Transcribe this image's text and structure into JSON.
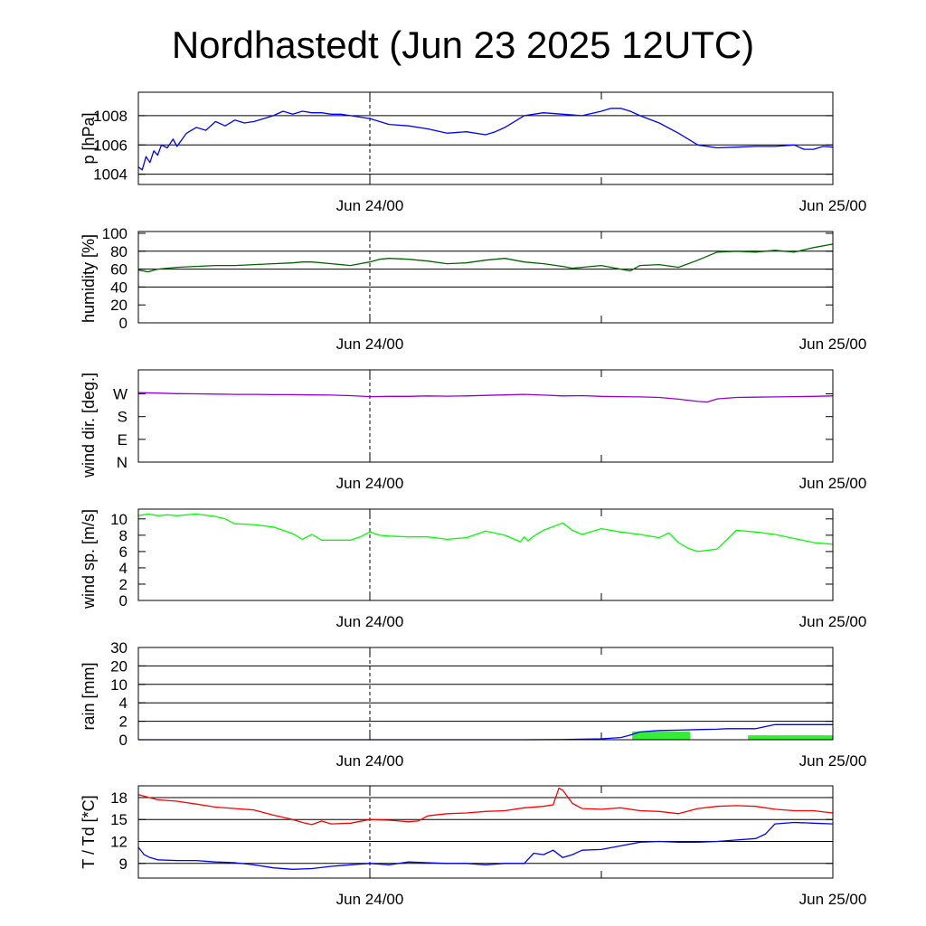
{
  "title": "Nordhastedt (Jun 23 2025 12UTC)",
  "colors": {
    "pressure": "#0000ff",
    "humidity": "#006400",
    "wind_dir": "#9400d3",
    "wind_speed": "#00ff00",
    "rain_total": "#0000ff",
    "rain_bar": "#33ee33",
    "temperature": "#ff0000",
    "dewpoint": "#0000ff"
  },
  "chart_data": [
    {
      "id": "pressure",
      "type": "line",
      "ylabel": "p [hPa]",
      "ylim": [
        1003.3,
        1009.6
      ],
      "yticks": [
        1004,
        1006,
        1008
      ],
      "yticklabels": [
        "1004",
        "1006",
        "1008"
      ],
      "hgrid": [
        1004,
        1006,
        1008
      ],
      "xlim": [
        0,
        36
      ],
      "xticks": [
        12,
        36
      ],
      "xticklabels": [
        "Jun 24/00",
        "Jun 25/00"
      ],
      "minor_xticks": [
        24
      ],
      "vline": 12,
      "series": [
        {
          "color_key": "pressure",
          "x": [
            0,
            0.2,
            0.4,
            0.6,
            0.8,
            1.0,
            1.2,
            1.5,
            1.8,
            2.0,
            2.5,
            3.0,
            3.5,
            4.0,
            4.5,
            5.0,
            5.5,
            6.0,
            6.5,
            7.0,
            7.5,
            8.0,
            8.5,
            9.0,
            9.5,
            10.0,
            10.5,
            11.0,
            11.5,
            12.0,
            12.5,
            13.0,
            14.0,
            15.0,
            16.0,
            17.0,
            18.0,
            18.5,
            19.0,
            19.5,
            20.0,
            21.0,
            22.0,
            23.0,
            24.0,
            24.5,
            25.0,
            25.5,
            26.0,
            27.0,
            28.0,
            29.0,
            30.0,
            31.0,
            32.0,
            33.0,
            34.0,
            34.5,
            35.0,
            35.5,
            36.0
          ],
          "y": [
            1004.5,
            1004.3,
            1005.2,
            1004.8,
            1005.6,
            1005.3,
            1006.0,
            1005.8,
            1006.4,
            1005.9,
            1006.8,
            1007.2,
            1007.0,
            1007.6,
            1007.3,
            1007.7,
            1007.5,
            1007.6,
            1007.8,
            1008.0,
            1008.3,
            1008.1,
            1008.3,
            1008.2,
            1008.2,
            1008.1,
            1008.1,
            1008.0,
            1007.9,
            1007.8,
            1007.6,
            1007.4,
            1007.3,
            1007.1,
            1006.8,
            1006.9,
            1006.7,
            1006.9,
            1007.2,
            1007.6,
            1008.0,
            1008.2,
            1008.1,
            1008.0,
            1008.3,
            1008.5,
            1008.5,
            1008.3,
            1008.0,
            1007.5,
            1006.8,
            1006.0,
            1005.8,
            1005.85,
            1005.9,
            1005.9,
            1006.0,
            1005.7,
            1005.7,
            1005.9,
            1005.85
          ]
        }
      ]
    },
    {
      "id": "humidity",
      "type": "line",
      "ylabel": "humidity [%]",
      "ylim": [
        0,
        102
      ],
      "yticks": [
        0,
        20,
        40,
        60,
        80,
        100
      ],
      "yticklabels": [
        "0",
        "20",
        "40",
        "60",
        "80",
        "100"
      ],
      "hgrid": [
        40,
        60,
        80
      ],
      "xlim": [
        0,
        36
      ],
      "xticks": [
        12,
        36
      ],
      "xticklabels": [
        "Jun 24/00",
        "Jun 25/00"
      ],
      "minor_xticks": [
        24
      ],
      "vline": 12,
      "series": [
        {
          "color_key": "humidity",
          "x": [
            0,
            0.5,
            1,
            2,
            3,
            4,
            5,
            6,
            7,
            8,
            8.5,
            9,
            10,
            11,
            11.5,
            12,
            12.5,
            13,
            14,
            15,
            16,
            17,
            18,
            19,
            20,
            21,
            22,
            22.5,
            23,
            23.5,
            24,
            25,
            25.5,
            26,
            27,
            28,
            29,
            30,
            31,
            32,
            33,
            34,
            35,
            36
          ],
          "y": [
            59,
            57,
            60,
            62,
            63,
            64,
            64,
            65,
            66,
            67,
            68,
            68,
            66,
            64,
            66,
            68,
            71,
            72,
            71,
            69,
            66,
            67,
            70,
            72,
            68,
            66,
            63,
            61,
            62,
            63,
            64,
            60,
            58,
            64,
            65,
            62,
            70,
            79,
            80,
            79,
            81,
            79,
            84,
            88
          ]
        }
      ]
    },
    {
      "id": "wind_direction",
      "type": "line",
      "ylabel": "wind dir. [deg.]",
      "ylim": [
        0,
        365
      ],
      "yticks": [
        0,
        90,
        180,
        270
      ],
      "yticklabels": [
        "N",
        "E",
        "S",
        "W"
      ],
      "hgrid": [],
      "xlim": [
        0,
        36
      ],
      "xticks": [
        12,
        36
      ],
      "xticklabels": [
        "Jun 24/00",
        "Jun 25/00"
      ],
      "minor_xticks": [
        24
      ],
      "vline": 12,
      "series": [
        {
          "color_key": "wind_dir",
          "x": [
            0,
            1,
            2,
            3,
            4,
            5,
            6,
            7,
            8,
            9,
            10,
            11,
            12,
            13,
            14,
            15,
            16,
            17,
            18,
            19,
            20,
            21,
            22,
            23,
            24,
            25,
            26,
            27,
            28,
            29,
            29.5,
            30,
            31,
            32,
            33,
            34,
            35,
            36
          ],
          "y": [
            275,
            273,
            271,
            270,
            269,
            268,
            268,
            267,
            267,
            266,
            265,
            263,
            259,
            260,
            260,
            262,
            261,
            262,
            264,
            266,
            268,
            265,
            262,
            263,
            260,
            259,
            258,
            256,
            249,
            240,
            238,
            250,
            256,
            257,
            258,
            259,
            260,
            262
          ]
        }
      ]
    },
    {
      "id": "wind_speed",
      "type": "line",
      "ylabel": "wind sp. [m/s]",
      "ylim": [
        0,
        11.2
      ],
      "yticks": [
        0,
        2,
        4,
        6,
        8,
        10
      ],
      "yticklabels": [
        "0",
        "2",
        "4",
        "6",
        "8",
        "10"
      ],
      "hgrid": [],
      "xlim": [
        0,
        36
      ],
      "xticks": [
        12,
        36
      ],
      "xticklabels": [
        "Jun 24/00",
        "Jun 25/00"
      ],
      "minor_xticks": [
        24
      ],
      "vline": 12,
      "series": [
        {
          "color_key": "wind_speed",
          "x": [
            0,
            0.5,
            1,
            1.5,
            2,
            3,
            4,
            4.5,
            5,
            6,
            7,
            8,
            8.5,
            9,
            9.5,
            10,
            11,
            11.5,
            12,
            12.5,
            13,
            14,
            15,
            16,
            17,
            17.5,
            18,
            19,
            19.8,
            20.0,
            20.2,
            20.5,
            21,
            22,
            22.5,
            23,
            24,
            25,
            26,
            27,
            27.5,
            28,
            28.5,
            29,
            30,
            31,
            32,
            33,
            34,
            35,
            36
          ],
          "y": [
            10.4,
            10.6,
            10.4,
            10.5,
            10.4,
            10.6,
            10.3,
            10.0,
            9.4,
            9.3,
            9.0,
            8.2,
            7.5,
            8.1,
            7.4,
            7.4,
            7.4,
            7.8,
            8.4,
            8.0,
            7.9,
            7.8,
            7.8,
            7.5,
            7.7,
            8.1,
            8.5,
            8.0,
            7.2,
            7.8,
            7.3,
            7.9,
            8.6,
            9.5,
            8.6,
            8.1,
            8.8,
            8.4,
            8.1,
            7.7,
            8.3,
            7.1,
            6.4,
            6.0,
            6.3,
            8.6,
            8.4,
            8.1,
            7.6,
            7.1,
            6.9
          ]
        }
      ]
    },
    {
      "id": "rain",
      "type": "line+bar",
      "ylabel": "rain [mm]",
      "ylim": [
        0,
        5
      ],
      "yticks": [
        0,
        1,
        2,
        3,
        4,
        5
      ],
      "yticklabels": [
        "0",
        "2",
        "4",
        "10",
        "20",
        "30"
      ],
      "hgrid": [
        1,
        2,
        3,
        4
      ],
      "xlim": [
        0,
        36
      ],
      "xticks": [
        12,
        36
      ],
      "xticklabels": [
        "Jun 24/00",
        "Jun 25/00"
      ],
      "minor_xticks": [
        24
      ],
      "vline": 12,
      "series": [
        {
          "color_key": "rain_total",
          "x": [
            0,
            20,
            22,
            24,
            25,
            25.5,
            26,
            27,
            28,
            29,
            30,
            30.5,
            31,
            32,
            33,
            34,
            35,
            36
          ],
          "y": [
            0,
            0,
            0.01,
            0.05,
            0.12,
            0.25,
            0.42,
            0.5,
            0.52,
            0.55,
            0.57,
            0.6,
            0.6,
            0.6,
            0.82,
            0.82,
            0.82,
            0.82
          ]
        }
      ],
      "bars": [
        {
          "color_key": "rain_bar",
          "x0": 25.6,
          "x1": 28.6,
          "y": 0.45
        },
        {
          "color_key": "rain_bar",
          "x0": 31.6,
          "x1": 36,
          "y": 0.24
        }
      ]
    },
    {
      "id": "temperature",
      "type": "line",
      "ylabel": "T / Td [*C]",
      "ylim": [
        7.0,
        19.6
      ],
      "yticks": [
        9,
        12,
        15,
        18
      ],
      "yticklabels": [
        "9",
        "12",
        "15",
        "18"
      ],
      "hgrid": [
        9,
        12,
        15,
        18
      ],
      "xlim": [
        0,
        36
      ],
      "xticks": [
        12,
        36
      ],
      "xticklabels": [
        "Jun 24/00",
        "Jun 25/00"
      ],
      "minor_xticks": [
        24
      ],
      "vline": 12,
      "series": [
        {
          "color_key": "temperature",
          "x": [
            0,
            1,
            2,
            3,
            4,
            5,
            6,
            7,
            8,
            8.5,
            9,
            9.5,
            10,
            11,
            12,
            13,
            14,
            14.5,
            15,
            16,
            17,
            18,
            19,
            20,
            21,
            21.5,
            21.8,
            22,
            22.5,
            23,
            24,
            25,
            26,
            27,
            28,
            29,
            30,
            31,
            32,
            33,
            34,
            35,
            36
          ],
          "y": [
            18.4,
            17.7,
            17.5,
            17.1,
            16.7,
            16.5,
            16.3,
            15.6,
            15.0,
            14.6,
            14.3,
            14.8,
            14.4,
            14.5,
            15.0,
            14.9,
            14.7,
            14.8,
            15.5,
            15.8,
            15.9,
            16.1,
            16.2,
            16.6,
            16.8,
            17.0,
            19.3,
            19.0,
            17.2,
            16.5,
            16.4,
            16.6,
            16.2,
            16.1,
            15.8,
            16.5,
            16.8,
            16.9,
            16.8,
            16.4,
            16.2,
            16.2,
            15.9
          ]
        },
        {
          "color_key": "dewpoint",
          "x": [
            0,
            0.3,
            0.6,
            1,
            2,
            3,
            4,
            5,
            6,
            7,
            8,
            9,
            10,
            11,
            12,
            13,
            14,
            15,
            16,
            17,
            18,
            19,
            20,
            20.5,
            21,
            21.5,
            22,
            22.5,
            23,
            24,
            25,
            26,
            27,
            28,
            29,
            30,
            31,
            32,
            32.5,
            33,
            34,
            35,
            36
          ],
          "y": [
            11.2,
            10.2,
            9.8,
            9.5,
            9.4,
            9.4,
            9.2,
            9.1,
            8.8,
            8.4,
            8.2,
            8.3,
            8.6,
            8.8,
            9.0,
            8.8,
            9.2,
            9.1,
            9.0,
            9.0,
            8.8,
            9.0,
            9.0,
            10.4,
            10.2,
            10.8,
            9.8,
            10.2,
            10.8,
            10.9,
            11.4,
            11.9,
            12.0,
            11.9,
            11.9,
            12.0,
            12.2,
            12.4,
            13.0,
            14.4,
            14.6,
            14.5,
            14.4
          ]
        }
      ]
    }
  ]
}
